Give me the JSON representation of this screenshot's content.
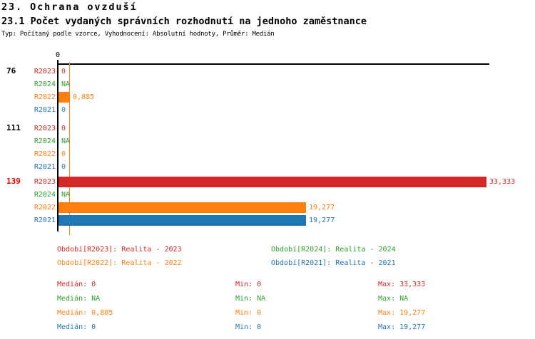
{
  "header": {
    "title1": "23. Ochrana ovzduší",
    "title2": "23.1 Počet vydaných správních rozhodnutí na jednoho zaměstnance",
    "subtitle": "Typ: Počítaný podle vzorce, Vyhodnocení: Absolutní hodnoty, Průměr: Medián"
  },
  "chart_data": {
    "type": "bar",
    "orientation": "horizontal",
    "title": "23.1 Počet vydaných správních rozhodnutí na jednoho zaměstnance",
    "x_tick": "0",
    "xlim": [
      0,
      33.6
    ],
    "grid": false,
    "categories": [
      "76",
      "111",
      "139"
    ],
    "series": [
      {
        "name": "R2023",
        "legend": "Období[R2023]: Realita - 2023",
        "color": "#d62728",
        "values": [
          0,
          0,
          33.333
        ]
      },
      {
        "name": "R2024",
        "legend": "Období[R2024]: Realita - 2024",
        "color": "#2ca02c",
        "values": [
          null,
          null,
          null
        ]
      },
      {
        "name": "R2022",
        "legend": "Období[R2022]: Realita - 2022",
        "color": "#ff7f0e",
        "values": [
          0.885,
          0,
          19.277
        ]
      },
      {
        "name": "R2021",
        "legend": "Období[R2021]: Realita - 2021",
        "color": "#1f77b4",
        "values": [
          0,
          0,
          19.277
        ]
      }
    ],
    "median_line": {
      "value": 0.885,
      "color": "#ff7f0e"
    }
  },
  "groups": [
    {
      "label": "76",
      "rows": [
        {
          "year": "R2023",
          "value": 0,
          "value_text": "0"
        },
        {
          "year": "R2024",
          "value": null,
          "value_text": "NA"
        },
        {
          "year": "R2022",
          "value": 0.885,
          "value_text": "0,885"
        },
        {
          "year": "R2021",
          "value": 0,
          "value_text": "0"
        }
      ]
    },
    {
      "label": "111",
      "rows": [
        {
          "year": "R2023",
          "value": 0,
          "value_text": "0"
        },
        {
          "year": "R2024",
          "value": null,
          "value_text": "NA"
        },
        {
          "year": "R2022",
          "value": 0,
          "value_text": "0"
        },
        {
          "year": "R2021",
          "value": 0,
          "value_text": "0"
        }
      ]
    },
    {
      "label": "139",
      "rows": [
        {
          "year": "R2023",
          "value": 33.333,
          "value_text": "33,333"
        },
        {
          "year": "R2024",
          "value": null,
          "value_text": "NA"
        },
        {
          "year": "R2022",
          "value": 19.277,
          "value_text": "19,277"
        },
        {
          "year": "R2021",
          "value": 19.277,
          "value_text": "19,277"
        }
      ]
    }
  ],
  "legend": {
    "items": [
      {
        "text": "Období[R2023]: Realita - 2023"
      },
      {
        "text": "Období[R2024]: Realita - 2024"
      },
      {
        "text": "Období[R2022]: Realita - 2022"
      },
      {
        "text": "Období[R2021]: Realita - 2021"
      }
    ]
  },
  "stats": {
    "rows": [
      {
        "median": "Medián: 0",
        "min": "Min: 0",
        "max": "Max: 33,333"
      },
      {
        "median": "Medián: NA",
        "min": "Min: NA",
        "max": "Max: NA"
      },
      {
        "median": "Medián: 0,885",
        "min": "Min: 0",
        "max": "Max: 19,277"
      },
      {
        "median": "Medián: 0",
        "min": "Min: 0",
        "max": "Max: 19,277"
      }
    ]
  },
  "colors": {
    "r2023": "#d62728",
    "r2024": "#2ca02c",
    "r2022": "#ff7f0e",
    "r2021": "#1f77b4",
    "group_highlight": "#ee0000",
    "text": "#000000",
    "background": "#ffffff"
  }
}
